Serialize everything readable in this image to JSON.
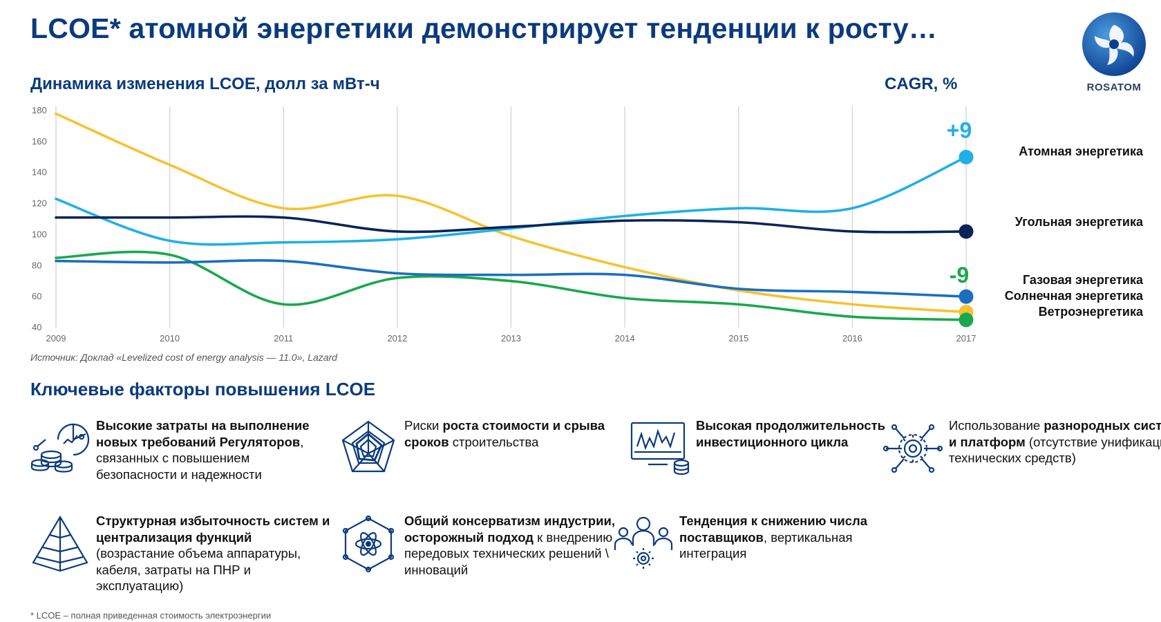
{
  "title": "LCOE* атомной энергетики демонстрирует тенденции к росту…",
  "logo_text": "ROSATOM",
  "subtitle": "Динамика изменения LCOE, долл за мВт-ч",
  "cagr_label": "CAGR, %",
  "source": "Источник: Доклад «Levelized cost of energy analysis — 11.0», Lazard",
  "factors_title": "Ключевые факторы повышения LCOE",
  "footnote": "* LCOE – полная приведенная стоимость электроэнергии",
  "factors": [
    {
      "icon": "coins-chart-icon",
      "parts": [
        {
          "b": true,
          "t": "Высокие затраты на выполнение новых требований Регуляторов"
        },
        {
          "b": false,
          "t": ", связанных с повышением безопасности и надежности"
        }
      ]
    },
    {
      "icon": "radar-chart-icon",
      "parts": [
        {
          "b": false,
          "t": "Риски "
        },
        {
          "b": true,
          "t": "роста стоимости и срыва сроков"
        },
        {
          "b": false,
          "t": " строительства"
        }
      ]
    },
    {
      "icon": "monitor-graph-icon",
      "parts": [
        {
          "b": true,
          "t": "Высокая продолжительность инвестиционного цикла"
        }
      ]
    },
    {
      "icon": "gear-network-icon",
      "parts": [
        {
          "b": false,
          "t": "Использование "
        },
        {
          "b": true,
          "t": "разнородных систем и платформ"
        },
        {
          "b": false,
          "t": " (отсутствие унификации технических средств)"
        }
      ]
    },
    {
      "icon": "pyramid-icon",
      "parts": [
        {
          "b": true,
          "t": "Структурная избыточность систем и централизация функций"
        },
        {
          "b": false,
          "t": " (возрастание объема аппаратуры, кабеля, затраты на ПНР и эксплуатацию)"
        }
      ]
    },
    {
      "icon": "atom-hexagon-icon",
      "parts": [
        {
          "b": true,
          "t": "Общий консерватизм индустрии, осторожный подход"
        },
        {
          "b": false,
          "t": " к внедрению передовых технических решений \\ инноваций"
        }
      ]
    },
    {
      "icon": "people-gear-icon",
      "parts": [
        {
          "b": true,
          "t": "Тенденция к снижению числа поставщиков"
        },
        {
          "b": false,
          "t": ", вертикальная интеграция"
        }
      ]
    }
  ],
  "chart_data": {
    "type": "line",
    "x": [
      "2009",
      "2010",
      "2011",
      "2012",
      "2013",
      "2014",
      "2015",
      "2016",
      "2017"
    ],
    "ylim": [
      40,
      180
    ],
    "yticks": [
      40,
      60,
      80,
      100,
      120,
      140,
      160,
      180
    ],
    "grid": "vertical",
    "series": [
      {
        "name": "Атомная энергетика",
        "color": "#1fb0e6",
        "values": [
          123,
          96,
          95,
          97,
          104,
          112,
          117,
          117,
          150
        ]
      },
      {
        "name": "Угольная энергетика",
        "color": "#0a2456",
        "values": [
          111,
          111,
          111,
          102,
          105,
          109,
          108,
          102,
          102
        ]
      },
      {
        "name": "Газовая энергетика",
        "color": "#1a6fc0",
        "values": [
          83,
          82,
          83,
          75,
          74,
          74,
          65,
          63,
          60
        ]
      },
      {
        "name": "Солнечная энергетика",
        "color": "#f6c32f",
        "values": [
          178,
          145,
          117,
          125,
          99,
          79,
          64,
          55,
          50
        ]
      },
      {
        "name": "Ветроэнергетика",
        "color": "#19a84e",
        "values": [
          85,
          87,
          55,
          72,
          70,
          59,
          55,
          47,
          45
        ]
      }
    ],
    "cagr": [
      {
        "series": "Атомная энергетика",
        "text": "+9",
        "color": "#1fb0e6"
      },
      {
        "series": "Ветроэнергетика",
        "text": "-9",
        "color": "#19a84e"
      }
    ]
  }
}
